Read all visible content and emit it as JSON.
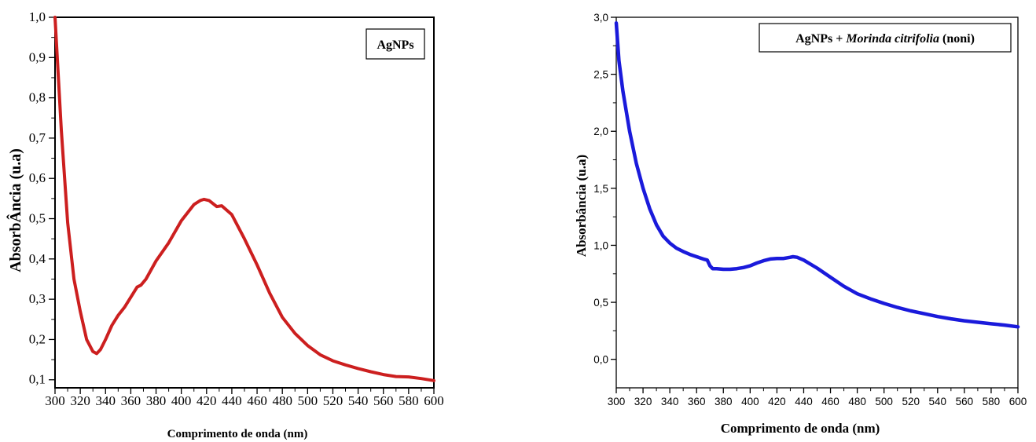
{
  "chart_data": [
    {
      "type": "line",
      "title": "",
      "legend": "AgNPs",
      "legend_position": "top-right",
      "xlabel": "Comprimento de onda (nm)",
      "ylabel": "AbsorbÂncia (u.a)",
      "xlim": [
        300,
        600
      ],
      "ylim": [
        0.08,
        1.0
      ],
      "xticks": [
        300,
        320,
        340,
        360,
        380,
        400,
        420,
        440,
        460,
        480,
        500,
        520,
        540,
        560,
        580,
        600
      ],
      "yticks": [
        0.1,
        0.2,
        0.3,
        0.4,
        0.5,
        0.6,
        0.7,
        0.8,
        0.9,
        1.0
      ],
      "ytick_labels": [
        "0,1",
        "0,2",
        "0,3",
        "0,4",
        "0,5",
        "0,6",
        "0,7",
        "0,8",
        "0,9",
        "1,0"
      ],
      "grid": false,
      "color": "#cc1f1f",
      "series": [
        {
          "x": [
            300,
            305,
            310,
            315,
            320,
            325,
            330,
            333,
            336,
            340,
            345,
            350,
            355,
            360,
            365,
            368,
            372,
            380,
            390,
            400,
            410,
            415,
            418,
            422,
            428,
            432,
            440,
            450,
            460,
            470,
            480,
            490,
            500,
            510,
            520,
            530,
            540,
            550,
            560,
            570,
            580,
            590,
            600
          ],
          "y": [
            1.0,
            0.72,
            0.49,
            0.35,
            0.27,
            0.2,
            0.17,
            0.165,
            0.175,
            0.2,
            0.235,
            0.26,
            0.28,
            0.305,
            0.33,
            0.335,
            0.35,
            0.395,
            0.44,
            0.495,
            0.535,
            0.545,
            0.548,
            0.545,
            0.53,
            0.532,
            0.51,
            0.45,
            0.385,
            0.315,
            0.255,
            0.215,
            0.185,
            0.162,
            0.147,
            0.137,
            0.128,
            0.12,
            0.113,
            0.108,
            0.107,
            0.103,
            0.098
          ]
        }
      ]
    },
    {
      "type": "line",
      "title": "",
      "legend_prefix": "AgNPs + ",
      "legend_italic": "Morinda citrifolia",
      "legend_suffix": " (noni)",
      "legend_position": "top-right",
      "xlabel": "Comprimento de onda (nm)",
      "ylabel": "Absorbância (u.a)",
      "xlim": [
        300,
        600
      ],
      "ylim": [
        -0.25,
        3.0
      ],
      "xticks": [
        300,
        320,
        340,
        360,
        380,
        400,
        420,
        440,
        460,
        480,
        500,
        520,
        540,
        560,
        580,
        600
      ],
      "yticks": [
        0.0,
        0.5,
        1.0,
        1.5,
        2.0,
        2.5,
        3.0
      ],
      "ytick_labels": [
        "0,0",
        "0,5",
        "1,0",
        "1,5",
        "2,0",
        "2,5",
        "3,0"
      ],
      "grid": false,
      "color": "#1a1adb",
      "series": [
        {
          "x": [
            300,
            302,
            305,
            310,
            315,
            320,
            325,
            330,
            335,
            340,
            345,
            350,
            355,
            360,
            365,
            368,
            370,
            372,
            375,
            380,
            385,
            390,
            395,
            400,
            405,
            410,
            415,
            420,
            425,
            430,
            432,
            435,
            440,
            450,
            460,
            470,
            480,
            490,
            500,
            510,
            520,
            530,
            540,
            550,
            560,
            570,
            580,
            590,
            600
          ],
          "y": [
            2.95,
            2.62,
            2.35,
            2.0,
            1.72,
            1.5,
            1.32,
            1.18,
            1.08,
            1.02,
            0.975,
            0.945,
            0.92,
            0.9,
            0.88,
            0.87,
            0.82,
            0.795,
            0.795,
            0.79,
            0.79,
            0.795,
            0.805,
            0.82,
            0.845,
            0.865,
            0.88,
            0.885,
            0.885,
            0.895,
            0.9,
            0.895,
            0.87,
            0.8,
            0.72,
            0.64,
            0.575,
            0.53,
            0.49,
            0.455,
            0.425,
            0.4,
            0.375,
            0.355,
            0.338,
            0.325,
            0.312,
            0.3,
            0.285
          ]
        }
      ]
    }
  ]
}
